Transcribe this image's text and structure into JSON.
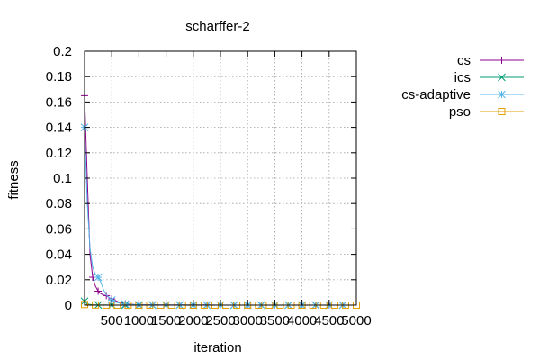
{
  "chart_data": {
    "type": "line",
    "title": "scharffer-2",
    "xlabel": "iteration",
    "ylabel": "fitness",
    "xlim": [
      0,
      5000
    ],
    "ylim": [
      0,
      0.2
    ],
    "xticks": [
      500,
      1000,
      1500,
      2000,
      2500,
      3000,
      3500,
      4000,
      4500,
      5000
    ],
    "xtick_labels": [
      "500",
      "1000",
      "1500",
      "2000",
      "2500",
      "3000",
      "3500",
      "4000",
      "4500",
      "5000"
    ],
    "yticks": [
      0,
      0.02,
      0.04,
      0.06,
      0.08,
      0.1,
      0.12,
      0.14,
      0.16,
      0.18,
      0.2
    ],
    "ytick_labels": [
      "0",
      "0.02",
      "0.04",
      "0.06",
      "0.08",
      "0.1",
      "0.12",
      "0.14",
      "0.16",
      "0.18",
      "0.2"
    ],
    "grid": true,
    "legend_position": "outside-right",
    "series": [
      {
        "name": "cs",
        "color": "#8b008b",
        "marker": "plus",
        "x": [
          0,
          50,
          100,
          150,
          200,
          250,
          300,
          350,
          400,
          450,
          500,
          550,
          600,
          650,
          700,
          750,
          800,
          900,
          1000,
          1250,
          1500,
          1750,
          2000,
          2250,
          2500,
          2750,
          3000,
          3250,
          3500,
          3750,
          4000,
          4250,
          4500,
          4750,
          5000
        ],
        "y": [
          0.165,
          0.1,
          0.04,
          0.022,
          0.015,
          0.011,
          0.009,
          0.008,
          0.0075,
          0.006,
          0.005,
          0.004,
          0.003,
          0.002,
          0.0015,
          0.001,
          0.0008,
          0.0005,
          0.0003,
          0.0002,
          0.0001,
          0.0001,
          5e-05,
          5e-05,
          3e-05,
          3e-05,
          2e-05,
          2e-05,
          1e-05,
          1e-05,
          1e-05,
          1e-05,
          1e-05,
          1e-05,
          1e-05
        ],
        "markers_x": [
          0,
          150,
          250,
          400,
          500,
          750,
          1000,
          1250,
          1500,
          1750,
          2000,
          2250,
          2500,
          2750,
          3000,
          3250,
          3500,
          3750,
          4000,
          4250,
          4500,
          4750
        ]
      },
      {
        "name": "ics",
        "color": "#009e73",
        "marker": "cross",
        "x": [
          0,
          50,
          100,
          150,
          200,
          250,
          300,
          400,
          500,
          750,
          1000,
          1500,
          2000,
          2500,
          3000,
          3500,
          4000,
          4500,
          5000
        ],
        "y": [
          0.003,
          0.001,
          0.0005,
          0.0003,
          0.0002,
          0.0001,
          0.0001,
          5e-05,
          3e-05,
          2e-05,
          1e-05,
          1e-05,
          0.0,
          0.0,
          0.0,
          0.0,
          0.0,
          0.0,
          0.0
        ],
        "markers_x": [
          0,
          250,
          500,
          750,
          1000,
          1250,
          1500,
          1750,
          2000,
          2250,
          2500,
          2750,
          3000,
          3250,
          3500,
          3750,
          4000,
          4250,
          4500,
          4750
        ]
      },
      {
        "name": "cs-adaptive",
        "color": "#56b4e9",
        "marker": "star",
        "x": [
          0,
          50,
          100,
          150,
          200,
          250,
          300,
          350,
          400,
          500,
          600,
          700,
          800,
          1000,
          1250,
          1500,
          2000,
          2500,
          3000,
          3500,
          4000,
          4500,
          5000
        ],
        "y": [
          0.14,
          0.08,
          0.045,
          0.03,
          0.024,
          0.022,
          0.018,
          0.012,
          0.008,
          0.004,
          0.002,
          0.001,
          0.0006,
          0.0003,
          0.0002,
          0.0001,
          5e-05,
          3e-05,
          2e-05,
          1e-05,
          1e-05,
          1e-05,
          1e-05
        ],
        "markers_x": [
          0,
          250,
          500,
          750,
          1000,
          1250,
          1500,
          1750,
          2000,
          2250,
          2500,
          2750,
          3000,
          3250,
          3500,
          3750,
          4000,
          4250,
          4500,
          4750
        ]
      },
      {
        "name": "pso",
        "color": "#e69f00",
        "marker": "square",
        "x": [
          0,
          100,
          200,
          300,
          500,
          1000,
          1500,
          2000,
          2500,
          3000,
          3500,
          4000,
          4500,
          5000
        ],
        "y": [
          0.0005,
          0.0002,
          0.0001,
          5e-05,
          2e-05,
          1e-05,
          0.0,
          0.0,
          0.0,
          0.0,
          0.0,
          0.0,
          0.0,
          0.0
        ],
        "markers_x": [
          0,
          200,
          400,
          600,
          800,
          1000,
          1200,
          1400,
          1600,
          1800,
          2000,
          2200,
          2400,
          2600,
          2800,
          3000,
          3200,
          3400,
          3600,
          3800,
          4000,
          4200,
          4400,
          4600,
          4800,
          5000
        ]
      }
    ]
  }
}
